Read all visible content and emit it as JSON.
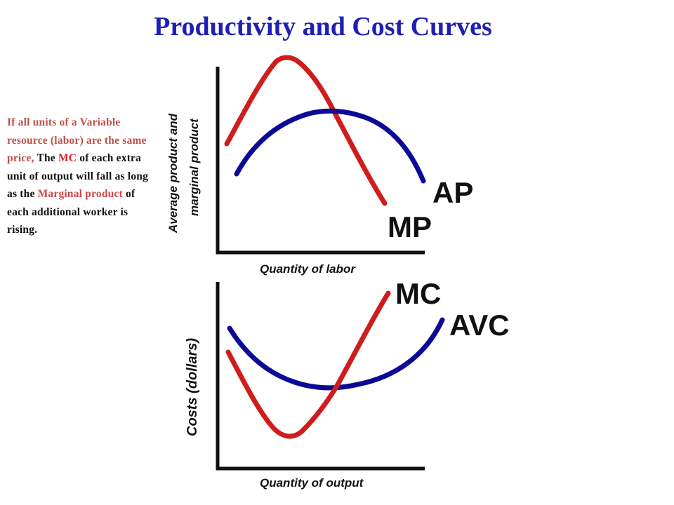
{
  "title": "Productivity and Cost Curves",
  "explanation": {
    "part1": "If all units of a Variable resource (labor) are the same price,",
    "part2": " The ",
    "mc": "MC",
    "part3": " of each extra unit of output will fall as long as the ",
    "marginal_product": "Marginal product",
    "part4": " of each additional worker is rising."
  },
  "top_panel": {
    "y_label_line1": "Average product and",
    "y_label_line2": "marginal product",
    "x_label": "Quantity of labor",
    "ap_label": "AP",
    "mp_label": "MP"
  },
  "bottom_panel": {
    "y_label": "Costs (dollars)",
    "x_label": "Quantity of output",
    "mc_label": "MC",
    "avc_label": "AVC"
  },
  "colors": {
    "title": "#1f1fb8",
    "red_curve": "#d01c1c",
    "blue_curve": "#0a0a96",
    "axis": "#111111"
  }
}
